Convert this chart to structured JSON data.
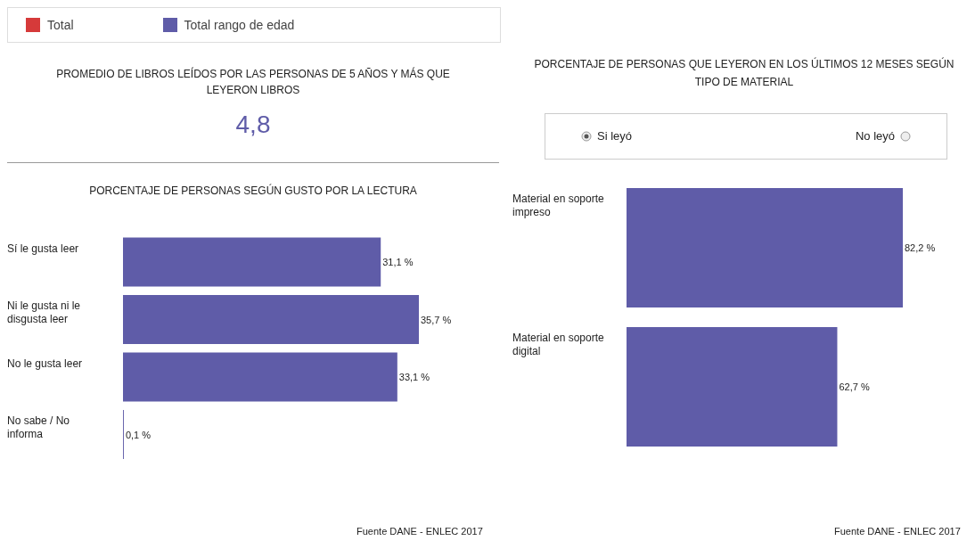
{
  "chart_data": [
    {
      "type": "other",
      "title": "PROMEDIO DE LIBROS LEÍDOS POR LAS PERSONAS DE 5 AÑOS Y MÁS QUE LEYERON LIBROS",
      "annotations": [
        "4,8"
      ],
      "color": "#5f5ca8"
    },
    {
      "type": "bar",
      "orientation": "horizontal",
      "title": "PORCENTAJE DE PERSONAS SEGÚN GUSTO POR LA LECTURA",
      "categories": [
        "Sí le gusta leer",
        "Ni le gusta ni le disgusta leer",
        "No le gusta leer",
        "No sabe / No informa"
      ],
      "series": [
        {
          "name": "Total",
          "color": "#d63a3a",
          "values": [
            null,
            null,
            null,
            null
          ]
        },
        {
          "name": "Total rango de edad",
          "color": "#5f5ca8",
          "values": [
            31.1,
            35.7,
            33.1,
            0.1
          ],
          "value_labels": [
            "31,1 %",
            "35,7 %",
            "33,1 %",
            "0,1 %"
          ]
        }
      ],
      "legend": "top",
      "grid": false,
      "annotations": [
        "Fuente DANE - ENLEC 2017"
      ]
    },
    {
      "type": "bar",
      "orientation": "horizontal",
      "title": "PORCENTAJE DE PERSONAS QUE LEYERON EN LOS ÚLTIMOS 12 MESES SEGÚN TIPO DE MATERIAL",
      "categories": [
        "Material en soporte impreso",
        "Material en soporte digital"
      ],
      "series": [
        {
          "color": "#5f5ca8",
          "values": [
            82.2,
            62.7
          ],
          "value_labels": [
            "82,2 %",
            "62,7 %"
          ]
        }
      ],
      "grid": false,
      "annotations": [
        "Si leyó",
        "No leyó",
        "Fuente DANE - ENLEC 2017"
      ]
    }
  ]
}
